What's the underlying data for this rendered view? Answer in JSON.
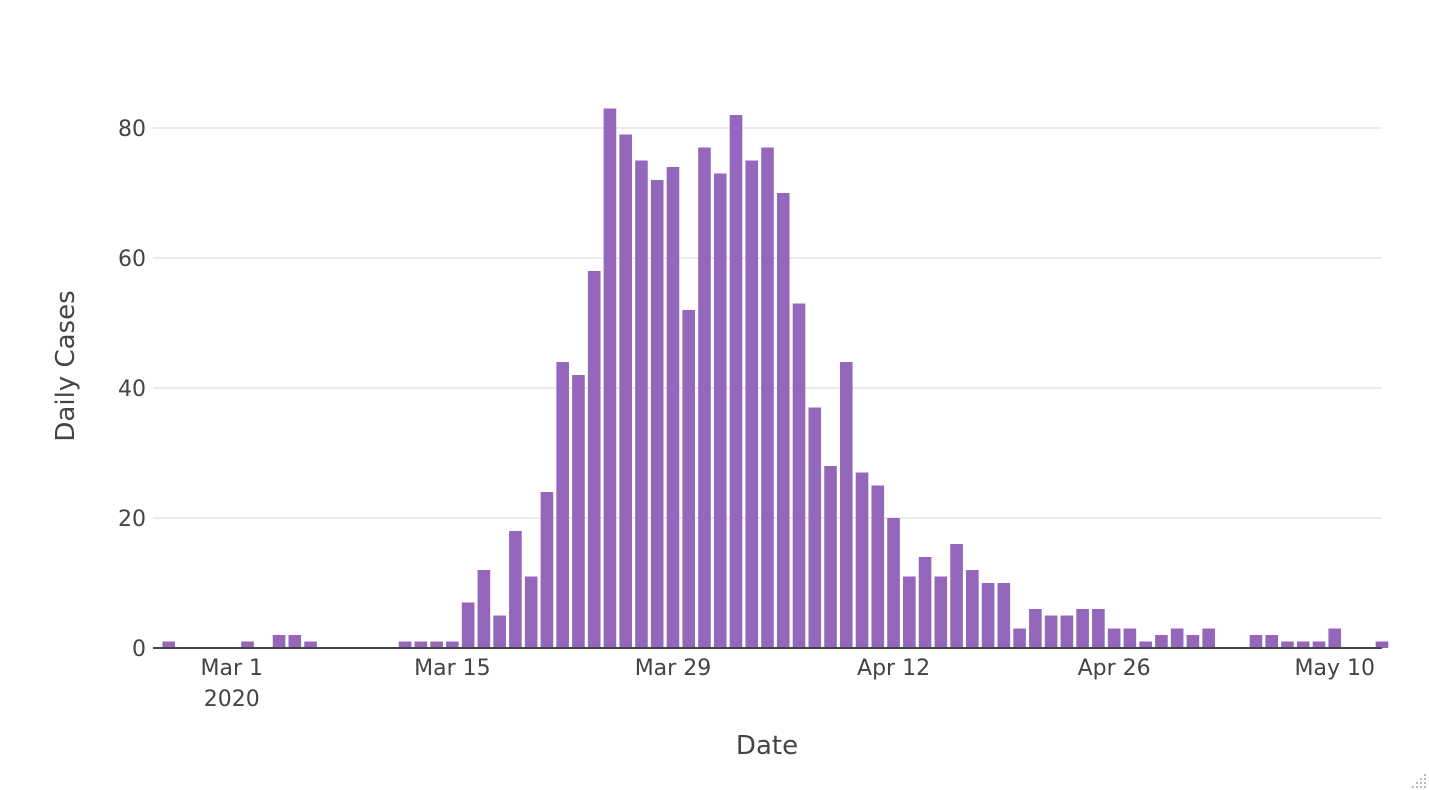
{
  "chart_data": {
    "type": "bar",
    "xlabel": "Date",
    "ylabel": "Daily Cases",
    "bar_color": "#9467bd",
    "grid_color": "#ebebeb",
    "axis_color": "#444444",
    "text_color": "#444444",
    "grid": true,
    "ylim": [
      0,
      90
    ],
    "y_ticks": [
      0,
      20,
      40,
      60,
      80
    ],
    "x_range": [
      "2020-02-25",
      "2020-05-13"
    ],
    "x_ticks": [
      {
        "date": "2020-03-01",
        "label": "Mar 1",
        "sublabel": "2020"
      },
      {
        "date": "2020-03-15",
        "label": "Mar 15"
      },
      {
        "date": "2020-03-29",
        "label": "Mar 29"
      },
      {
        "date": "2020-04-12",
        "label": "Apr 12"
      },
      {
        "date": "2020-04-26",
        "label": "Apr 26"
      },
      {
        "date": "2020-05-10",
        "label": "May 10"
      }
    ],
    "x": [
      "2020-02-26",
      "2020-02-27",
      "2020-02-28",
      "2020-02-29",
      "2020-03-01",
      "2020-03-02",
      "2020-03-03",
      "2020-03-04",
      "2020-03-05",
      "2020-03-06",
      "2020-03-07",
      "2020-03-08",
      "2020-03-09",
      "2020-03-10",
      "2020-03-11",
      "2020-03-12",
      "2020-03-13",
      "2020-03-14",
      "2020-03-15",
      "2020-03-16",
      "2020-03-17",
      "2020-03-18",
      "2020-03-19",
      "2020-03-20",
      "2020-03-21",
      "2020-03-22",
      "2020-03-23",
      "2020-03-24",
      "2020-03-25",
      "2020-03-26",
      "2020-03-27",
      "2020-03-28",
      "2020-03-29",
      "2020-03-30",
      "2020-03-31",
      "2020-04-01",
      "2020-04-02",
      "2020-04-03",
      "2020-04-04",
      "2020-04-05",
      "2020-04-06",
      "2020-04-07",
      "2020-04-08",
      "2020-04-09",
      "2020-04-10",
      "2020-04-11",
      "2020-04-12",
      "2020-04-13",
      "2020-04-14",
      "2020-04-15",
      "2020-04-16",
      "2020-04-17",
      "2020-04-18",
      "2020-04-19",
      "2020-04-20",
      "2020-04-21",
      "2020-04-22",
      "2020-04-23",
      "2020-04-24",
      "2020-04-25",
      "2020-04-26",
      "2020-04-27",
      "2020-04-28",
      "2020-04-29",
      "2020-04-30",
      "2020-05-01",
      "2020-05-02",
      "2020-05-03",
      "2020-05-04",
      "2020-05-05",
      "2020-05-06",
      "2020-05-07",
      "2020-05-08",
      "2020-05-09",
      "2020-05-10",
      "2020-05-11",
      "2020-05-12",
      "2020-05-13"
    ],
    "values": [
      1,
      0,
      0,
      0,
      0,
      1,
      0,
      2,
      2,
      1,
      0,
      0,
      0,
      0,
      0,
      1,
      1,
      1,
      1,
      7,
      12,
      5,
      18,
      11,
      24,
      44,
      42,
      58,
      83,
      79,
      75,
      72,
      74,
      52,
      77,
      73,
      82,
      75,
      77,
      70,
      53,
      37,
      28,
      44,
      27,
      25,
      20,
      11,
      14,
      11,
      16,
      12,
      10,
      10,
      3,
      6,
      5,
      5,
      6,
      6,
      3,
      3,
      1,
      2,
      3,
      2,
      3,
      0,
      0,
      2,
      2,
      1,
      1,
      1,
      3,
      0,
      0,
      1
    ]
  }
}
